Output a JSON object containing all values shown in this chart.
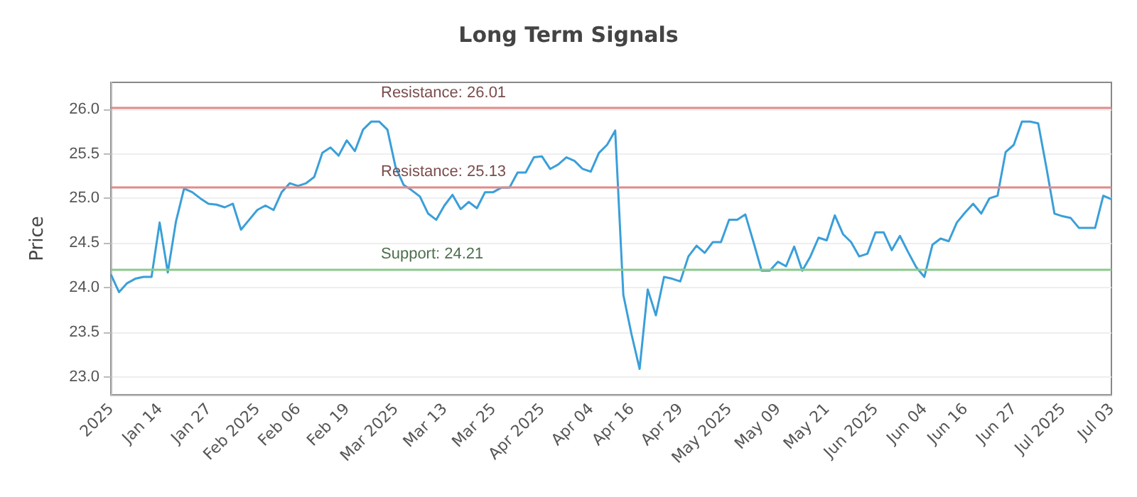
{
  "chart_data": {
    "type": "line",
    "title": "Long Term Signals",
    "ylabel": "Price",
    "categories": [
      "2025",
      null,
      null,
      null,
      null,
      null,
      "Jan 14",
      null,
      null,
      null,
      null,
      null,
      "Jan 27",
      null,
      null,
      null,
      null,
      null,
      "Feb 2025",
      null,
      null,
      null,
      null,
      "Feb 06",
      null,
      null,
      null,
      null,
      null,
      "Feb 19",
      null,
      null,
      null,
      null,
      null,
      "Mar 2025",
      null,
      null,
      null,
      null,
      null,
      "Mar 13",
      null,
      null,
      null,
      null,
      null,
      "Mar 25",
      null,
      null,
      null,
      null,
      null,
      "Apr 2025",
      null,
      null,
      null,
      null,
      null,
      "Apr 04",
      null,
      null,
      null,
      null,
      "Apr 16",
      null,
      null,
      null,
      null,
      null,
      "Apr 29",
      null,
      null,
      null,
      null,
      null,
      "May 2025",
      null,
      null,
      null,
      null,
      null,
      "May 09",
      null,
      null,
      null,
      null,
      null,
      "May 21",
      null,
      null,
      null,
      null,
      null,
      "Jun 2025",
      null,
      null,
      null,
      null,
      null,
      "Jun 04",
      null,
      null,
      null,
      null,
      "Jun 16",
      null,
      null,
      null,
      null,
      null,
      "Jun 27",
      null,
      null,
      null,
      null,
      null,
      "Jul 2025",
      null,
      null,
      null,
      null,
      null,
      "Jul 03"
    ],
    "series": [
      {
        "color": "#3a9fd9",
        "values": [
          24.15,
          23.95,
          24.05,
          24.1,
          24.12,
          24.12,
          24.73,
          24.17,
          24.74,
          25.11,
          25.07,
          25.0,
          24.94,
          24.93,
          24.9,
          24.94,
          24.65,
          24.76,
          24.87,
          24.92,
          24.87,
          25.07,
          25.17,
          25.14,
          25.17,
          25.24,
          25.51,
          25.57,
          25.48,
          25.65,
          25.53,
          25.77,
          25.86,
          25.86,
          25.77,
          25.35,
          25.15,
          25.09,
          25.02,
          24.83,
          24.76,
          24.92,
          25.04,
          24.88,
          24.96,
          24.89,
          25.07,
          25.07,
          25.12,
          25.12,
          25.29,
          25.29,
          25.46,
          25.47,
          25.33,
          25.38,
          25.46,
          25.42,
          25.33,
          25.3,
          25.51,
          25.6,
          25.76,
          23.92,
          23.48,
          23.09,
          23.98,
          23.69,
          24.12,
          24.1,
          24.07,
          24.35,
          24.47,
          24.39,
          24.51,
          24.51,
          24.76,
          24.76,
          24.82,
          24.51,
          24.19,
          24.19,
          24.29,
          24.24,
          24.46,
          24.19,
          24.35,
          24.56,
          24.53,
          24.81,
          24.6,
          24.51,
          24.35,
          24.38,
          24.62,
          24.62,
          24.42,
          24.58,
          24.4,
          24.23,
          24.12,
          24.48,
          24.55,
          24.52,
          24.73,
          24.84,
          24.94,
          24.83,
          25.0,
          25.03,
          25.52,
          25.6,
          25.86,
          25.86,
          25.84,
          25.35,
          24.83,
          24.8,
          24.78,
          24.67,
          24.67,
          24.67,
          25.03,
          24.99
        ]
      }
    ],
    "ylim": [
      22.8,
      26.3
    ],
    "yticks": [
      {
        "value": 23,
        "label": "23.0"
      },
      23.5,
      {
        "value": 24,
        "label": "24.0"
      },
      24.5,
      {
        "value": 25,
        "label": "25.0"
      },
      25.5,
      {
        "value": 26,
        "label": "26.0"
      }
    ],
    "grid": "y",
    "marker": "none",
    "line_style": "solid",
    "ref_lines": [
      {
        "axis": "y",
        "value": 26.01,
        "label": "Resistance: 26.01",
        "color": "#e08a8a"
      },
      {
        "axis": "y",
        "value": 25.13,
        "label": "Resistance: 25.13",
        "color": "#e08a8a"
      },
      {
        "axis": "y",
        "value": 24.21,
        "label": "Support: 24.21",
        "color": "#8cc98c"
      }
    ]
  }
}
